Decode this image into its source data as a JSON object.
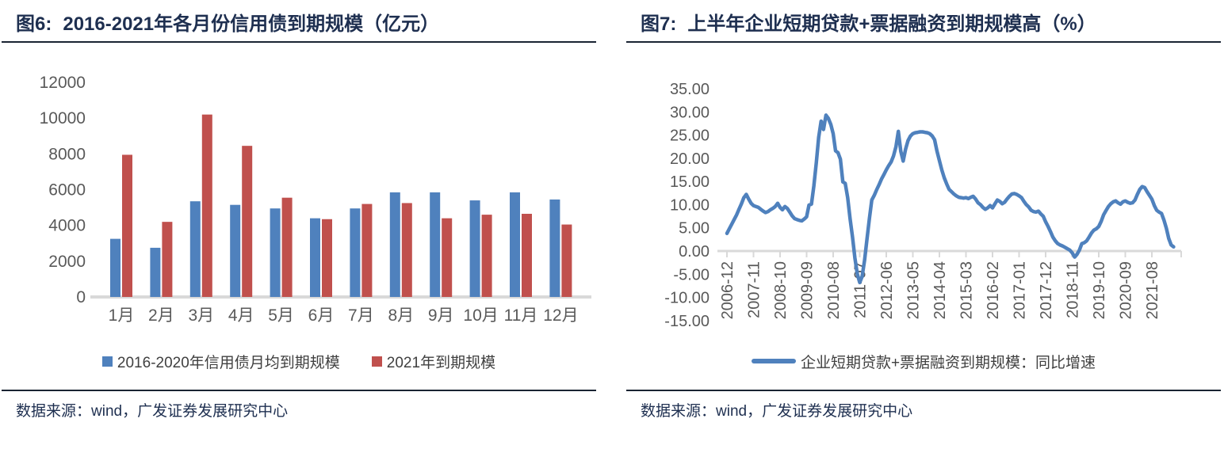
{
  "panels": {
    "left": {
      "figure_label": "图6:",
      "title": "2016-2021年各月份信用债到期规模（亿元）",
      "source": "数据来源：wind，广发证券发展研究中心"
    },
    "right": {
      "figure_label": "图7:",
      "title": "上半年企业短期贷款+票据融资到期规模高（%）",
      "source": "数据来源：wind，广发证券发展研究中心"
    }
  },
  "colors": {
    "bar_blue": "#4F81BD",
    "bar_red": "#C0504D",
    "line_blue": "#4F81BD",
    "axis_gray": "#D9D9D9",
    "tick_text": "#595959",
    "title_navy": "#1E2F50",
    "rule_dark": "#1A2433"
  },
  "chart_data": [
    {
      "type": "bar",
      "title": "2016-2021年各月份信用债到期规模（亿元）",
      "categories": [
        "1月",
        "2月",
        "3月",
        "4月",
        "5月",
        "6月",
        "7月",
        "8月",
        "9月",
        "10月",
        "11月",
        "12月"
      ],
      "series": [
        {
          "name": "2016-2020年信用债月均到期规模",
          "color": "#4F81BD",
          "values": [
            3250,
            2750,
            5350,
            5150,
            4950,
            4400,
            4950,
            5850,
            5850,
            5400,
            5850,
            5450
          ]
        },
        {
          "name": "2021年到期规模",
          "color": "#C0504D",
          "values": [
            7950,
            4200,
            10200,
            8450,
            5550,
            4350,
            5200,
            5250,
            4400,
            4600,
            4650,
            4050
          ]
        }
      ],
      "ylim": [
        0,
        12000
      ],
      "ytick_step": 2000,
      "grid": false,
      "legend_position": "bottom"
    },
    {
      "type": "line",
      "title": "上半年企业短期贷款+票据融资到期规模高（%）",
      "x_start": "2006-12",
      "x_tick_every": 11,
      "x_tick_labels": [
        "2006-12",
        "2007-11",
        "2008-10",
        "2009-09",
        "2010-08",
        "2011-07",
        "2012-06",
        "2013-05",
        "2014-04",
        "2015-03",
        "2016-02",
        "2017-01",
        "2017-12",
        "2018-11",
        "2019-10",
        "2020-09",
        "2021-08"
      ],
      "ylim": [
        -15,
        35
      ],
      "ytick_step": 5,
      "grid": false,
      "legend_position": "bottom",
      "series": [
        {
          "name": "企业短期贷款+票据融资到期规模：同比增速",
          "color": "#4F81BD",
          "values": [
            3.8,
            4.8,
            5.8,
            6.8,
            7.8,
            9.0,
            10.2,
            11.5,
            12.2,
            11.2,
            10.3,
            9.8,
            9.6,
            9.4,
            9.0,
            8.6,
            8.3,
            8.5,
            8.9,
            9.2,
            9.6,
            10.3,
            9.4,
            8.9,
            9.6,
            9.2,
            8.4,
            7.6,
            7.0,
            6.8,
            6.6,
            6.5,
            6.9,
            7.4,
            9.9,
            10.1,
            14.0,
            19.0,
            24.5,
            28.0,
            26.2,
            29.3,
            28.6,
            27.3,
            25.3,
            21.6,
            21.2,
            19.8,
            14.9,
            14.6,
            11.5,
            7.0,
            3.0,
            -1.5,
            -5.0,
            -6.8,
            -5.5,
            -2.0,
            2.5,
            7.0,
            11.0,
            12.0,
            13.2,
            14.3,
            15.5,
            16.5,
            17.5,
            18.4,
            19.2,
            20.5,
            22.5,
            25.8,
            21.5,
            19.4,
            22.0,
            23.8,
            24.8,
            25.3,
            25.5,
            25.6,
            25.7,
            25.7,
            25.6,
            25.5,
            25.3,
            24.8,
            24.0,
            21.5,
            19.5,
            17.5,
            15.8,
            14.5,
            13.3,
            12.8,
            12.3,
            11.9,
            11.6,
            11.5,
            11.4,
            11.5,
            11.3,
            11.6,
            11.8,
            11.2,
            10.4,
            10.0,
            9.4,
            9.0,
            9.3,
            9.8,
            9.3,
            10.2,
            11.0,
            10.7,
            10.2,
            10.5,
            11.2,
            11.8,
            12.3,
            12.4,
            12.2,
            11.9,
            11.5,
            10.7,
            10.0,
            9.5,
            8.8,
            8.5,
            8.4,
            8.6,
            8.0,
            7.5,
            6.3,
            5.3,
            4.2,
            3.0,
            2.2,
            1.6,
            1.3,
            1.1,
            0.8,
            0.5,
            0.2,
            -0.4,
            -1.3,
            -0.7,
            0.2,
            1.6,
            1.8,
            2.2,
            3.0,
            3.9,
            4.5,
            4.8,
            5.3,
            6.4,
            7.8,
            8.7,
            9.6,
            10.2,
            10.6,
            10.8,
            10.4,
            10.1,
            10.6,
            10.8,
            10.5,
            10.3,
            10.4,
            11.0,
            12.2,
            13.3,
            13.9,
            13.7,
            12.8,
            12.0,
            11.2,
            9.8,
            8.8,
            8.4,
            8.1,
            6.7,
            4.9,
            2.7,
            1.3,
            0.9
          ]
        }
      ]
    }
  ]
}
